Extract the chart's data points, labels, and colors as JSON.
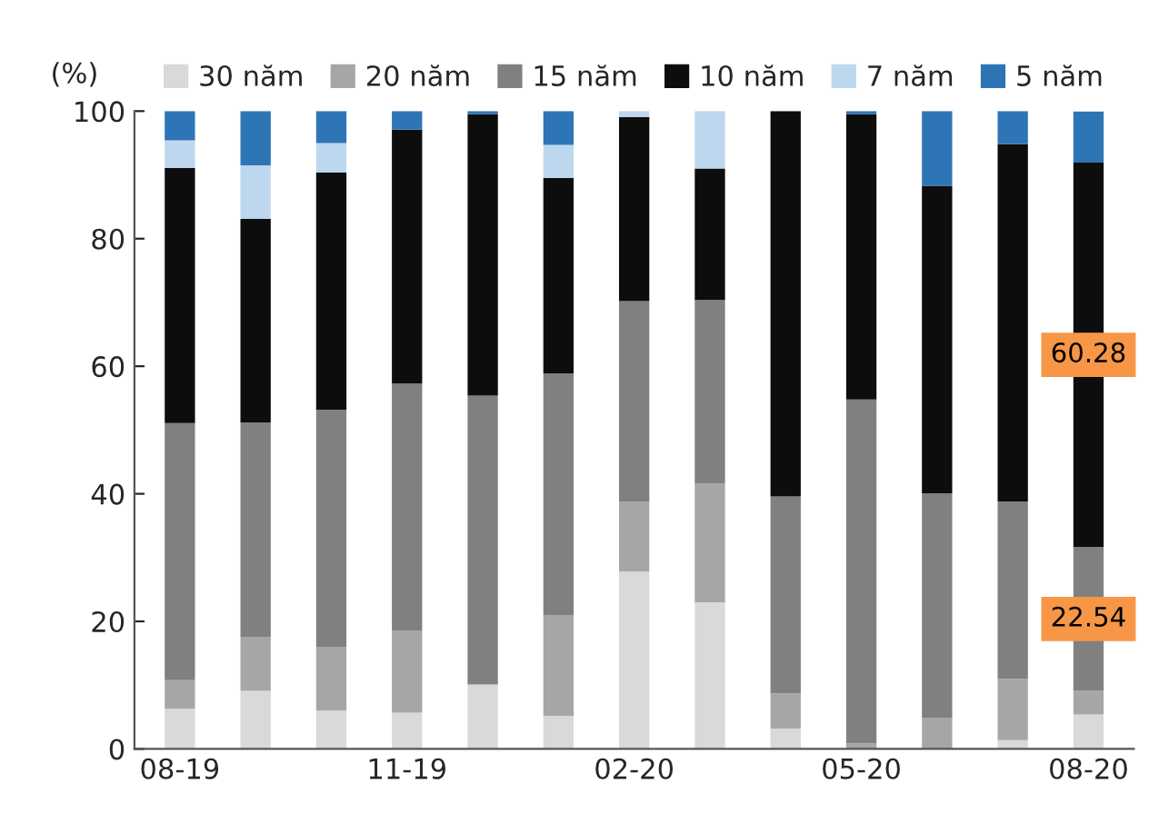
{
  "chart_data": {
    "type": "bar",
    "stacked": true,
    "ylabel": "(%)",
    "categories": [
      "08-19",
      null,
      null,
      "11-19",
      null,
      null,
      "02-20",
      null,
      null,
      "05-20",
      null,
      null,
      "08-20"
    ],
    "ylim": [
      0,
      100
    ],
    "yticks": [
      0,
      20,
      40,
      60,
      80,
      100
    ],
    "grid": false,
    "legend": "top",
    "series": [
      {
        "name": "30 năm",
        "color": "#d9d9d9",
        "values": [
          6.3,
          9.1,
          6.0,
          5.7,
          10.1,
          5.2,
          27.8,
          23.0,
          3.2,
          0,
          0,
          1.4,
          5.4
        ]
      },
      {
        "name": "20 năm",
        "color": "#a6a6a6",
        "values": [
          4.5,
          8.5,
          10.0,
          12.8,
          0,
          15.8,
          11.0,
          18.6,
          5.5,
          0.9,
          4.9,
          9.6,
          3.7
        ]
      },
      {
        "name": "15 năm",
        "color": "#808080",
        "values": [
          40.3,
          33.6,
          37.2,
          38.8,
          45.3,
          37.9,
          31.4,
          28.8,
          30.9,
          53.9,
          35.2,
          27.8,
          22.54
        ],
        "value_labels": [
          null,
          null,
          null,
          null,
          null,
          null,
          null,
          null,
          null,
          null,
          null,
          null,
          "22.54"
        ]
      },
      {
        "name": "10 năm",
        "color": "#0d0d0d",
        "values": [
          40.0,
          31.9,
          37.2,
          39.8,
          44.1,
          30.6,
          28.9,
          20.6,
          60.4,
          44.7,
          48.2,
          56.0,
          60.28
        ],
        "value_labels": [
          null,
          null,
          null,
          null,
          null,
          null,
          null,
          null,
          null,
          null,
          null,
          null,
          "60.28"
        ]
      },
      {
        "name": "7 năm",
        "color": "#bdd7ee",
        "values": [
          4.3,
          8.4,
          4.6,
          0,
          0,
          5.2,
          0.9,
          9.0,
          0,
          0,
          0,
          0,
          0
        ]
      },
      {
        "name": "5 năm",
        "color": "#2e75b6",
        "values": [
          4.6,
          8.5,
          5.0,
          2.9,
          0.5,
          5.3,
          0,
          0,
          0,
          0.5,
          11.7,
          5.2,
          8.0
        ]
      }
    ]
  }
}
